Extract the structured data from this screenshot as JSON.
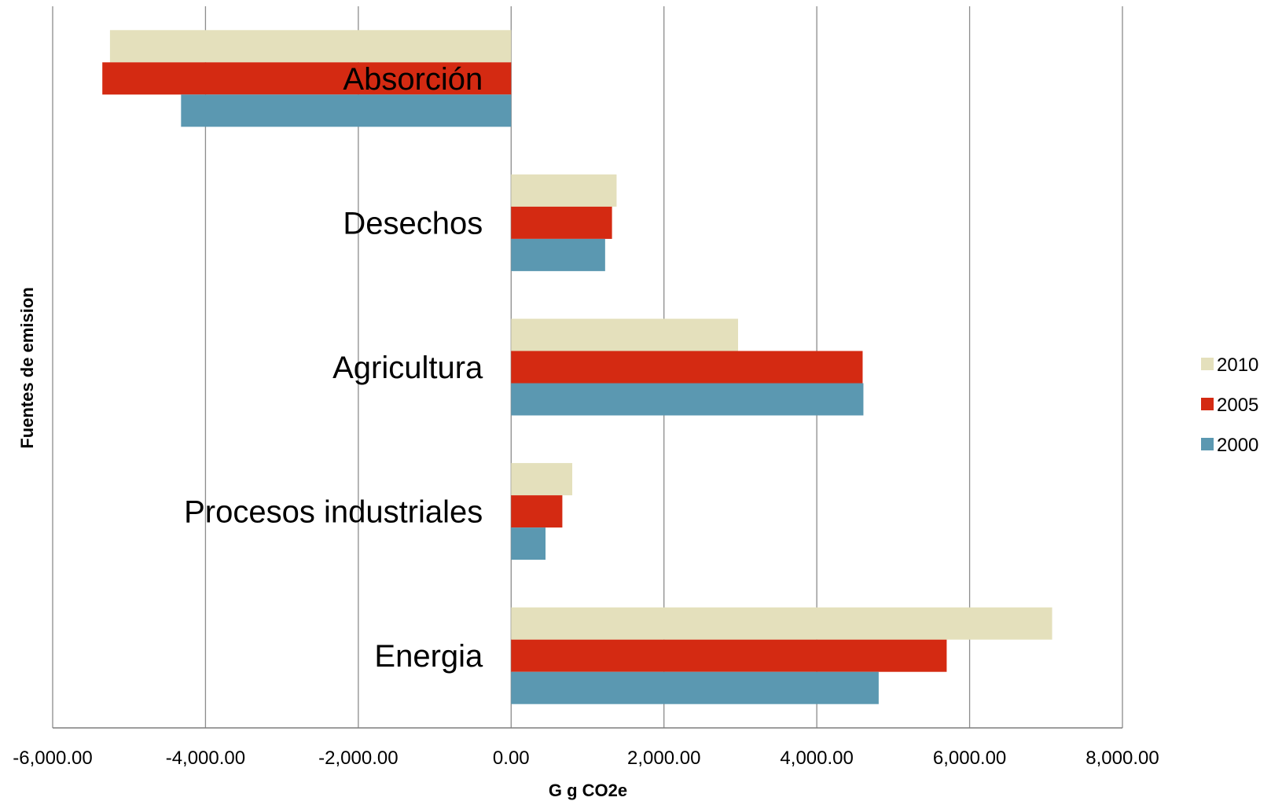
{
  "chart_data": {
    "type": "bar",
    "orientation": "horizontal",
    "categories": [
      "Absorción",
      "Desechos",
      "Agricultura",
      "Procesos industriales",
      "Energia"
    ],
    "series": [
      {
        "name": "2010",
        "color": "#e4e0bc",
        "values": [
          -5250,
          1380,
          2970,
          800,
          7080
        ]
      },
      {
        "name": "2005",
        "color": "#d42a12",
        "values": [
          -5350,
          1320,
          4600,
          670,
          5700
        ]
      },
      {
        "name": "2000",
        "color": "#5b98b1",
        "values": [
          -4320,
          1230,
          4610,
          450,
          4810
        ]
      }
    ],
    "xlabel": "G g  CO2e",
    "ylabel": "Fuentes de emision",
    "xlim": [
      -6000,
      8000
    ],
    "xticks": [
      -6000,
      -4000,
      -2000,
      0,
      2000,
      4000,
      6000,
      8000
    ],
    "xtick_labels": [
      "-6,000.00",
      "-4,000.00",
      "-2,000.00",
      "0.00",
      "2,000.00",
      "4,000.00",
      "6,000.00",
      "8,000.00"
    ],
    "grid": true,
    "legend_position": "right"
  }
}
